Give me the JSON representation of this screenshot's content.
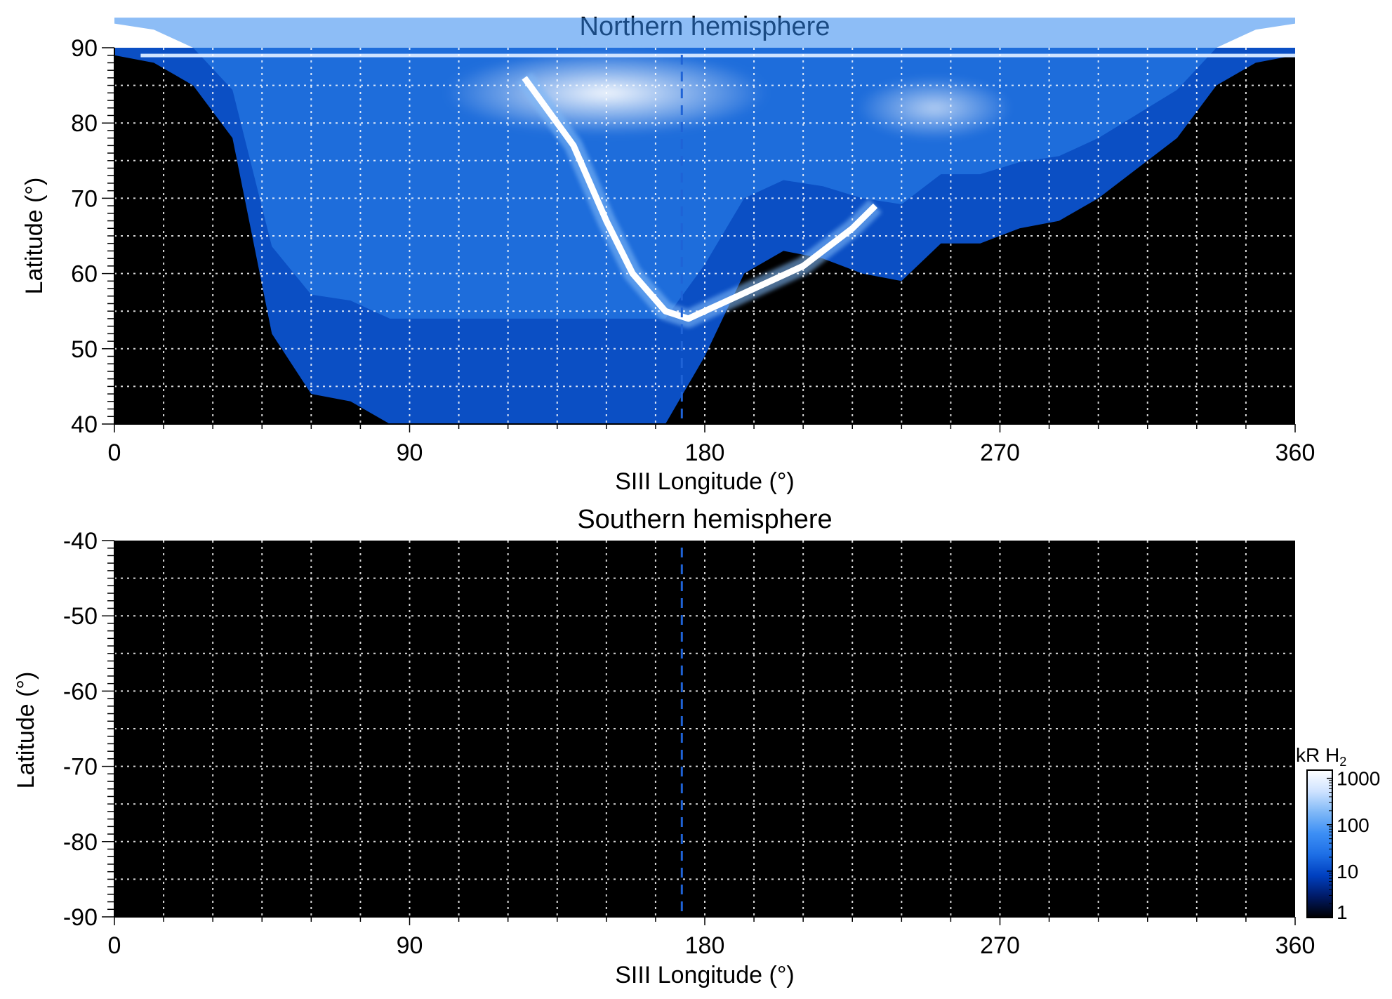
{
  "colorbar": {
    "label_main": "kR H",
    "label_sub": "2",
    "ticks": [
      {
        "value": 1000,
        "label": "1000"
      },
      {
        "value": 100,
        "label": "100"
      },
      {
        "value": 10,
        "label": "10"
      },
      {
        "value": 1,
        "label": "1"
      }
    ],
    "range": [
      1,
      1500
    ],
    "scale": "log",
    "colors": [
      "#000000",
      "#001a66",
      "#0040c0",
      "#1e6fe6",
      "#3d8ff5",
      "#7fb8f7",
      "#cfe3ff",
      "#ffffff"
    ]
  },
  "chart_data": [
    {
      "type": "heatmap",
      "title": "Northern hemisphere",
      "xlabel": "SIII Longitude (°)",
      "ylabel": "Latitude (°)",
      "xlim": [
        0,
        360
      ],
      "ylim": [
        40,
        90
      ],
      "x_ticks": [
        {
          "value": 0,
          "label": "0"
        },
        {
          "value": 90,
          "label": "90"
        },
        {
          "value": 180,
          "label": "180"
        },
        {
          "value": 270,
          "label": "270"
        },
        {
          "value": 360,
          "label": "360"
        }
      ],
      "y_ticks": [
        {
          "value": 40,
          "label": "40"
        },
        {
          "value": 50,
          "label": "50"
        },
        {
          "value": 60,
          "label": "60"
        },
        {
          "value": 70,
          "label": "70"
        },
        {
          "value": 80,
          "label": "80"
        },
        {
          "value": 90,
          "label": "90"
        }
      ],
      "grid": true,
      "grid_x_step": 15,
      "grid_y_step": 5,
      "reference_line_lon": 173,
      "coverage": {
        "lat_edge": [
          89,
          88,
          85,
          78,
          52,
          44,
          43,
          40,
          40,
          40,
          40,
          40,
          40,
          40,
          40,
          49,
          60,
          63,
          62,
          60,
          59,
          64,
          64,
          66,
          67,
          70,
          74,
          78,
          85,
          88,
          89
        ],
        "lon_step": 12
      },
      "main_oval": [
        {
          "lon": 125,
          "lat": 86
        },
        {
          "lon": 140,
          "lat": 77
        },
        {
          "lon": 150,
          "lat": 67
        },
        {
          "lon": 158,
          "lat": 60
        },
        {
          "lon": 168,
          "lat": 55
        },
        {
          "lon": 175,
          "lat": 54
        },
        {
          "lon": 190,
          "lat": 57
        },
        {
          "lon": 210,
          "lat": 61
        },
        {
          "lon": 225,
          "lat": 66
        },
        {
          "lon": 232,
          "lat": 69
        }
      ]
    },
    {
      "type": "heatmap",
      "title": "Southern hemisphere",
      "xlabel": "SIII Longitude (°)",
      "ylabel": "Latitude (°)",
      "xlim": [
        0,
        360
      ],
      "ylim": [
        -90,
        -40
      ],
      "x_ticks": [
        {
          "value": 0,
          "label": "0"
        },
        {
          "value": 90,
          "label": "90"
        },
        {
          "value": 180,
          "label": "180"
        },
        {
          "value": 270,
          "label": "270"
        },
        {
          "value": 360,
          "label": "360"
        }
      ],
      "y_ticks": [
        {
          "value": -40,
          "label": "-40"
        },
        {
          "value": -50,
          "label": "-50"
        },
        {
          "value": -60,
          "label": "-60"
        },
        {
          "value": -70,
          "label": "-70"
        },
        {
          "value": -80,
          "label": "-80"
        },
        {
          "value": -90,
          "label": "-90"
        }
      ],
      "grid": true,
      "grid_x_step": 15,
      "grid_y_step": 5,
      "reference_line_lon": 173
    }
  ]
}
